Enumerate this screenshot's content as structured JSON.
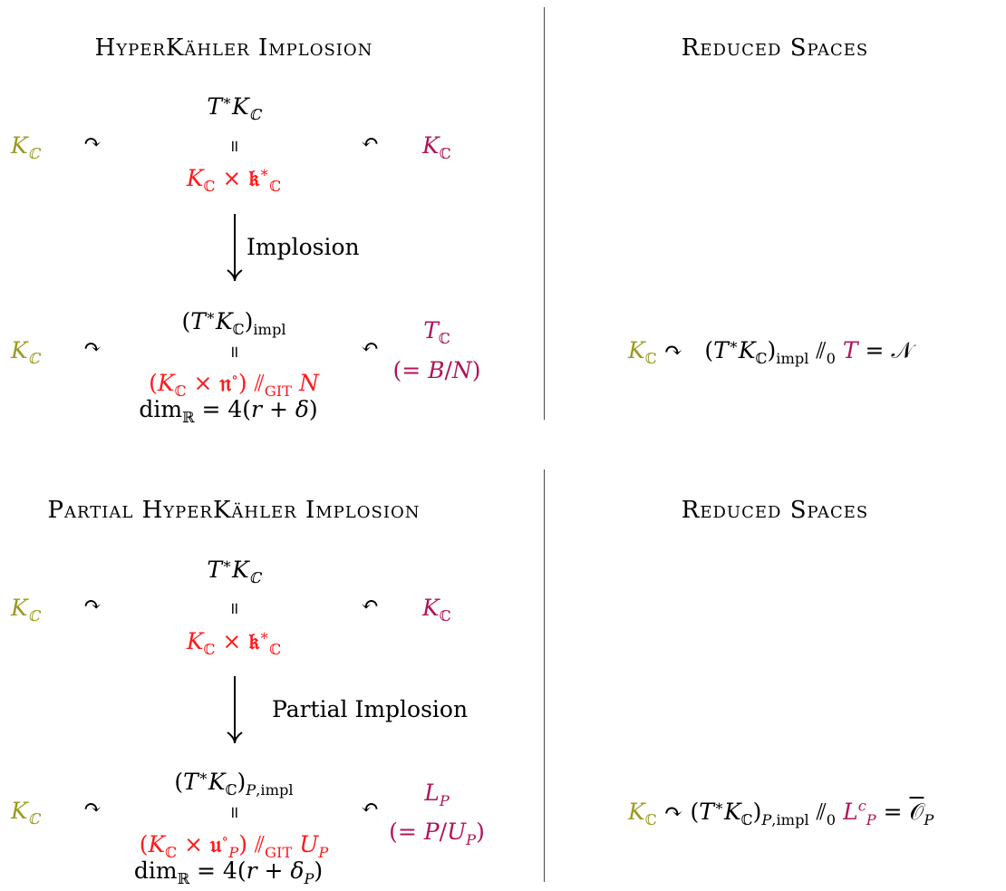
{
  "top": {
    "left_heading": "HyperKähler Implosion",
    "right_heading": "Reduced Spaces",
    "left_group": "K",
    "right_group": "K",
    "space": "T*K",
    "space_decomposed": "K × 𝔨*",
    "arrow_label": "Implosion",
    "imploded": "(T*K)",
    "imploded_sub": "impl",
    "imploded_quotient": "(K × 𝔫°) ⫽GIT N",
    "torus": "T",
    "torus_eq": "(= B/N)",
    "dimension": "dim = 4(r + δ)",
    "reduced": "K ↷ (T*K)impl ⫽0 T = 𝒩"
  },
  "bottom": {
    "left_heading": "Partial HyperKähler Implosion",
    "right_heading": "Reduced Spaces",
    "left_group": "K",
    "right_group": "K",
    "space": "T*K",
    "space_decomposed": "K × 𝔨*",
    "arrow_label": "Partial Implosion",
    "imploded": "(T*K)",
    "imploded_sub": "P,impl",
    "imploded_quotient": "(K × 𝔲°P) ⫽GIT UP",
    "levi": "L",
    "levi_eq": "(= P/UP)",
    "dimension": "dim = 4(r + δP)",
    "reduced": "K ↷ (T*K)P,impl ⫽0 LcP = 𝒪P"
  },
  "colors": {
    "left_action": "#9a9a22",
    "right_action": "#b0145a",
    "hyperkahler": "#ff1a1a"
  }
}
